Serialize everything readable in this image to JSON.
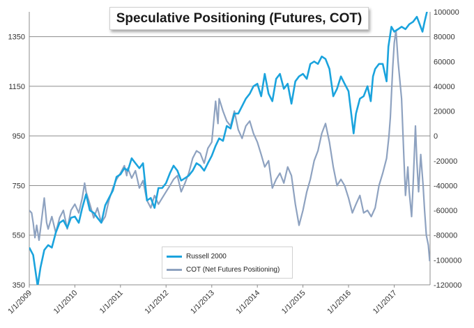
{
  "chart_data": {
    "type": "line",
    "title": "Speculative Positioning (Futures, COT)",
    "x_ticks": [
      "1/1/2009",
      "1/1/2010",
      "1/1/2011",
      "1/1/2012",
      "1/1/2013",
      "1/1/2014",
      "1/1/2015",
      "1/1/2016",
      "1/1/2017"
    ],
    "x_range": [
      "2009-01-01",
      "2017-10-15"
    ],
    "y_left": {
      "min": 350,
      "max": 1450,
      "ticks": [
        350,
        550,
        750,
        950,
        1150,
        1350
      ]
    },
    "y_right": {
      "min": -120000,
      "max": 100000,
      "ticks": [
        -120000,
        -100000,
        -80000,
        -60000,
        -40000,
        -20000,
        0,
        20000,
        40000,
        60000,
        80000,
        100000
      ]
    },
    "grid": "horizontal",
    "legend_position": "bottom-center",
    "series": [
      {
        "name": "Russell 2000",
        "axis": "left",
        "color": "#1aa3dd",
        "points": [
          [
            "2009-01-01",
            500
          ],
          [
            "2009-02-01",
            470
          ],
          [
            "2009-03-09",
            345
          ],
          [
            "2009-04-01",
            420
          ],
          [
            "2009-05-01",
            490
          ],
          [
            "2009-06-01",
            510
          ],
          [
            "2009-07-01",
            500
          ],
          [
            "2009-08-01",
            560
          ],
          [
            "2009-09-01",
            600
          ],
          [
            "2009-10-01",
            610
          ],
          [
            "2009-11-01",
            580
          ],
          [
            "2009-12-01",
            620
          ],
          [
            "2010-01-01",
            625
          ],
          [
            "2010-02-01",
            600
          ],
          [
            "2010-03-01",
            660
          ],
          [
            "2010-04-01",
            715
          ],
          [
            "2010-05-01",
            650
          ],
          [
            "2010-06-01",
            640
          ],
          [
            "2010-07-01",
            620
          ],
          [
            "2010-08-01",
            600
          ],
          [
            "2010-09-01",
            670
          ],
          [
            "2010-10-01",
            700
          ],
          [
            "2010-11-01",
            730
          ],
          [
            "2010-12-01",
            785
          ],
          [
            "2011-01-01",
            795
          ],
          [
            "2011-02-01",
            820
          ],
          [
            "2011-03-01",
            810
          ],
          [
            "2011-04-01",
            860
          ],
          [
            "2011-05-01",
            840
          ],
          [
            "2011-06-01",
            820
          ],
          [
            "2011-07-01",
            840
          ],
          [
            "2011-08-01",
            690
          ],
          [
            "2011-09-01",
            700
          ],
          [
            "2011-10-01",
            660
          ],
          [
            "2011-11-01",
            740
          ],
          [
            "2011-12-01",
            740
          ],
          [
            "2012-01-01",
            760
          ],
          [
            "2012-02-01",
            800
          ],
          [
            "2012-03-01",
            830
          ],
          [
            "2012-04-01",
            810
          ],
          [
            "2012-05-01",
            770
          ],
          [
            "2012-06-01",
            780
          ],
          [
            "2012-07-01",
            790
          ],
          [
            "2012-08-01",
            810
          ],
          [
            "2012-09-01",
            840
          ],
          [
            "2012-10-01",
            830
          ],
          [
            "2012-11-01",
            810
          ],
          [
            "2012-12-01",
            840
          ],
          [
            "2013-01-01",
            870
          ],
          [
            "2013-02-01",
            910
          ],
          [
            "2013-03-01",
            940
          ],
          [
            "2013-04-01",
            930
          ],
          [
            "2013-05-01",
            990
          ],
          [
            "2013-06-01",
            980
          ],
          [
            "2013-07-01",
            1040
          ],
          [
            "2013-08-01",
            1040
          ],
          [
            "2013-09-01",
            1070
          ],
          [
            "2013-10-01",
            1100
          ],
          [
            "2013-11-01",
            1120
          ],
          [
            "2013-12-01",
            1150
          ],
          [
            "2014-01-01",
            1160
          ],
          [
            "2014-02-01",
            1110
          ],
          [
            "2014-03-01",
            1200
          ],
          [
            "2014-04-01",
            1120
          ],
          [
            "2014-05-01",
            1090
          ],
          [
            "2014-06-01",
            1180
          ],
          [
            "2014-07-01",
            1200
          ],
          [
            "2014-08-01",
            1140
          ],
          [
            "2014-09-01",
            1160
          ],
          [
            "2014-10-01",
            1080
          ],
          [
            "2014-11-01",
            1170
          ],
          [
            "2014-12-01",
            1190
          ],
          [
            "2015-01-01",
            1200
          ],
          [
            "2015-02-01",
            1180
          ],
          [
            "2015-03-01",
            1240
          ],
          [
            "2015-04-01",
            1250
          ],
          [
            "2015-05-01",
            1240
          ],
          [
            "2015-06-01",
            1270
          ],
          [
            "2015-07-01",
            1260
          ],
          [
            "2015-08-01",
            1220
          ],
          [
            "2015-09-01",
            1110
          ],
          [
            "2015-10-01",
            1140
          ],
          [
            "2015-11-01",
            1190
          ],
          [
            "2015-12-01",
            1160
          ],
          [
            "2016-01-01",
            1130
          ],
          [
            "2016-02-11",
            960
          ],
          [
            "2016-03-01",
            1040
          ],
          [
            "2016-04-01",
            1100
          ],
          [
            "2016-05-01",
            1110
          ],
          [
            "2016-06-01",
            1150
          ],
          [
            "2016-06-27",
            1090
          ],
          [
            "2016-07-15",
            1190
          ],
          [
            "2016-08-01",
            1220
          ],
          [
            "2016-09-01",
            1240
          ],
          [
            "2016-10-01",
            1240
          ],
          [
            "2016-11-01",
            1170
          ],
          [
            "2016-11-15",
            1310
          ],
          [
            "2016-12-09",
            1390
          ],
          [
            "2017-01-01",
            1370
          ],
          [
            "2017-02-01",
            1380
          ],
          [
            "2017-03-01",
            1390
          ],
          [
            "2017-04-01",
            1380
          ],
          [
            "2017-05-01",
            1400
          ],
          [
            "2017-06-01",
            1410
          ],
          [
            "2017-07-01",
            1430
          ],
          [
            "2017-08-15",
            1370
          ],
          [
            "2017-09-01",
            1410
          ],
          [
            "2017-09-20",
            1450
          ],
          [
            "2017-10-10",
            1500
          ]
        ]
      },
      {
        "name": "COT (Net Futures Positioning)",
        "axis": "right",
        "color": "#8ea2c0",
        "points": [
          [
            "2009-01-01",
            -60000
          ],
          [
            "2009-01-20",
            -62000
          ],
          [
            "2009-02-01",
            -70000
          ],
          [
            "2009-02-15",
            -82000
          ],
          [
            "2009-03-01",
            -72000
          ],
          [
            "2009-03-20",
            -84000
          ],
          [
            "2009-04-01",
            -75000
          ],
          [
            "2009-05-01",
            -50000
          ],
          [
            "2009-05-20",
            -70000
          ],
          [
            "2009-06-01",
            -75000
          ],
          [
            "2009-07-01",
            -65000
          ],
          [
            "2009-08-01",
            -78000
          ],
          [
            "2009-09-01",
            -66000
          ],
          [
            "2009-10-01",
            -60000
          ],
          [
            "2009-11-01",
            -75000
          ],
          [
            "2009-12-01",
            -60000
          ],
          [
            "2010-01-01",
            -55000
          ],
          [
            "2010-02-01",
            -62000
          ],
          [
            "2010-03-01",
            -50000
          ],
          [
            "2010-03-20",
            -38000
          ],
          [
            "2010-04-01",
            -45000
          ],
          [
            "2010-05-01",
            -55000
          ],
          [
            "2010-06-01",
            -66000
          ],
          [
            "2010-07-01",
            -58000
          ],
          [
            "2010-08-01",
            -70000
          ],
          [
            "2010-09-01",
            -65000
          ],
          [
            "2010-10-01",
            -52000
          ],
          [
            "2010-11-01",
            -42000
          ],
          [
            "2010-12-01",
            -35000
          ],
          [
            "2011-01-01",
            -30000
          ],
          [
            "2011-02-01",
            -24000
          ],
          [
            "2011-02-20",
            -32000
          ],
          [
            "2011-03-01",
            -26000
          ],
          [
            "2011-04-01",
            -34000
          ],
          [
            "2011-05-01",
            -28000
          ],
          [
            "2011-06-01",
            -42000
          ],
          [
            "2011-07-01",
            -36000
          ],
          [
            "2011-08-01",
            -52000
          ],
          [
            "2011-09-01",
            -58000
          ],
          [
            "2011-10-01",
            -48000
          ],
          [
            "2011-11-01",
            -55000
          ],
          [
            "2011-12-01",
            -50000
          ],
          [
            "2012-01-01",
            -45000
          ],
          [
            "2012-02-01",
            -40000
          ],
          [
            "2012-03-01",
            -35000
          ],
          [
            "2012-04-01",
            -32000
          ],
          [
            "2012-05-01",
            -45000
          ],
          [
            "2012-06-01",
            -38000
          ],
          [
            "2012-07-01",
            -30000
          ],
          [
            "2012-08-01",
            -18000
          ],
          [
            "2012-09-01",
            -12000
          ],
          [
            "2012-10-01",
            -14000
          ],
          [
            "2012-11-01",
            -22000
          ],
          [
            "2012-12-01",
            -10000
          ],
          [
            "2013-01-01",
            -5000
          ],
          [
            "2013-02-01",
            28000
          ],
          [
            "2013-02-20",
            10000
          ],
          [
            "2013-03-01",
            30000
          ],
          [
            "2013-04-01",
            20000
          ],
          [
            "2013-05-01",
            12000
          ],
          [
            "2013-06-01",
            8000
          ],
          [
            "2013-07-01",
            20000
          ],
          [
            "2013-08-01",
            5000
          ],
          [
            "2013-09-01",
            -2000
          ],
          [
            "2013-10-01",
            8000
          ],
          [
            "2013-11-01",
            12000
          ],
          [
            "2013-12-01",
            2000
          ],
          [
            "2014-01-01",
            -5000
          ],
          [
            "2014-02-01",
            -15000
          ],
          [
            "2014-03-01",
            -25000
          ],
          [
            "2014-04-01",
            -20000
          ],
          [
            "2014-05-01",
            -42000
          ],
          [
            "2014-06-01",
            -35000
          ],
          [
            "2014-07-01",
            -30000
          ],
          [
            "2014-08-01",
            -38000
          ],
          [
            "2014-09-01",
            -25000
          ],
          [
            "2014-10-01",
            -32000
          ],
          [
            "2014-11-01",
            -55000
          ],
          [
            "2014-12-01",
            -72000
          ],
          [
            "2015-01-01",
            -60000
          ],
          [
            "2015-02-01",
            -45000
          ],
          [
            "2015-03-01",
            -35000
          ],
          [
            "2015-04-01",
            -20000
          ],
          [
            "2015-05-01",
            -12000
          ],
          [
            "2015-06-01",
            2000
          ],
          [
            "2015-07-01",
            10000
          ],
          [
            "2015-08-01",
            -5000
          ],
          [
            "2015-09-01",
            -25000
          ],
          [
            "2015-10-01",
            -40000
          ],
          [
            "2015-11-01",
            -35000
          ],
          [
            "2015-12-01",
            -40000
          ],
          [
            "2016-01-01",
            -50000
          ],
          [
            "2016-02-01",
            -62000
          ],
          [
            "2016-03-01",
            -55000
          ],
          [
            "2016-04-01",
            -48000
          ],
          [
            "2016-05-01",
            -62000
          ],
          [
            "2016-06-01",
            -60000
          ],
          [
            "2016-07-01",
            -65000
          ],
          [
            "2016-08-01",
            -58000
          ],
          [
            "2016-09-01",
            -40000
          ],
          [
            "2016-10-01",
            -30000
          ],
          [
            "2016-11-01",
            -18000
          ],
          [
            "2016-11-20",
            0
          ],
          [
            "2016-12-01",
            15000
          ],
          [
            "2016-12-20",
            55000
          ],
          [
            "2017-01-01",
            75000
          ],
          [
            "2017-01-15",
            85000
          ],
          [
            "2017-02-01",
            60000
          ],
          [
            "2017-03-01",
            30000
          ],
          [
            "2017-03-20",
            -20000
          ],
          [
            "2017-04-01",
            -48000
          ],
          [
            "2017-04-20",
            -25000
          ],
          [
            "2017-05-01",
            -45000
          ],
          [
            "2017-05-20",
            -65000
          ],
          [
            "2017-06-01",
            -40000
          ],
          [
            "2017-06-20",
            8000
          ],
          [
            "2017-07-01",
            -20000
          ],
          [
            "2017-07-15",
            -45000
          ],
          [
            "2017-08-01",
            -15000
          ],
          [
            "2017-08-20",
            -40000
          ],
          [
            "2017-09-01",
            -60000
          ],
          [
            "2017-09-15",
            -80000
          ],
          [
            "2017-10-01",
            -88000
          ],
          [
            "2017-10-12",
            -101000
          ]
        ]
      }
    ]
  }
}
